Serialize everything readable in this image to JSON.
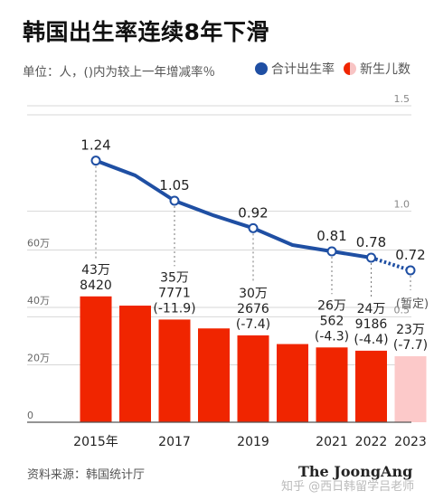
{
  "title": "韩国出生率连续8年下滑",
  "unit_text": "单位：人，()内为较上一年增减率％",
  "legend": {
    "line_label": "合计出生率",
    "bar_label": "新生儿数"
  },
  "colors": {
    "bar": "#f02500",
    "bar_estimate": "#fcc9c9",
    "line": "#1f4fa3",
    "grid": "#d7d7d7"
  },
  "source_text": "资料来源：韩国统计厅",
  "brand_text": "The JoongAng",
  "watermark_text": "知乎 @西日韩留学吕老师",
  "chart_data": [
    {
      "type": "bar",
      "categories": [
        "2015年",
        "2016",
        "2017",
        "2018",
        "2019",
        "2020",
        "2021",
        "2022",
        "2023"
      ],
      "x_tick_labels": [
        "2015年",
        "",
        "2017",
        "",
        "2019",
        "",
        "2021",
        "2022",
        "2023"
      ],
      "values": [
        438420,
        406243,
        357771,
        326822,
        302676,
        272337,
        260562,
        249186,
        230000
      ],
      "estimate_index": 8,
      "ylim": [
        0,
        650000
      ],
      "y_ticks": [
        0,
        200000,
        400000,
        600000
      ],
      "y_tick_labels": [
        "0",
        "20万",
        "40万",
        "60万"
      ],
      "bar_labels": [
        [
          "43万",
          "8420"
        ],
        [],
        [
          "35万",
          "7771",
          "(-11.9)"
        ],
        [],
        [
          "30万",
          "2676",
          "(-7.4)"
        ],
        [],
        [
          "26万",
          "562",
          "(-4.3)"
        ],
        [
          "24万",
          "9186",
          "(-4.4)"
        ],
        [
          "23万",
          "(-7.7)"
        ]
      ],
      "estimate_note": "(暂定)"
    },
    {
      "type": "line",
      "x": [
        "2015",
        "2016",
        "2017",
        "2018",
        "2019",
        "2020",
        "2021",
        "2022",
        "2023"
      ],
      "values": [
        1.24,
        1.17,
        1.05,
        0.98,
        0.92,
        0.84,
        0.81,
        0.78,
        0.72
      ],
      "point_labels": [
        "1.24",
        "",
        "1.05",
        "",
        "0.92",
        "",
        "0.81",
        "0.78",
        "0.72"
      ],
      "dashed_from_index": 7,
      "ylim": [
        0,
        1.5
      ],
      "y_ticks": [
        0.5,
        1.0,
        1.5
      ],
      "y_tick_labels": [
        "0.5",
        "1.0",
        "1.5"
      ]
    }
  ]
}
